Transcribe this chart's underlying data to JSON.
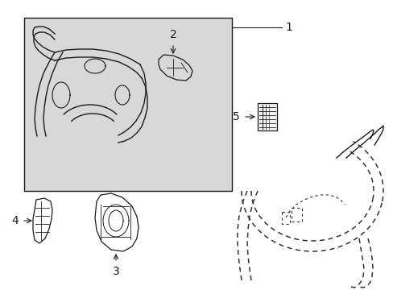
{
  "bg_color": "#ffffff",
  "box_fill": "#d8d8d8",
  "line_color": "#1a1a1a",
  "dash_color": "#333333",
  "label_1": "1",
  "label_2": "2",
  "label_3": "3",
  "label_4": "4",
  "label_5": "5",
  "font_size_label": 10
}
